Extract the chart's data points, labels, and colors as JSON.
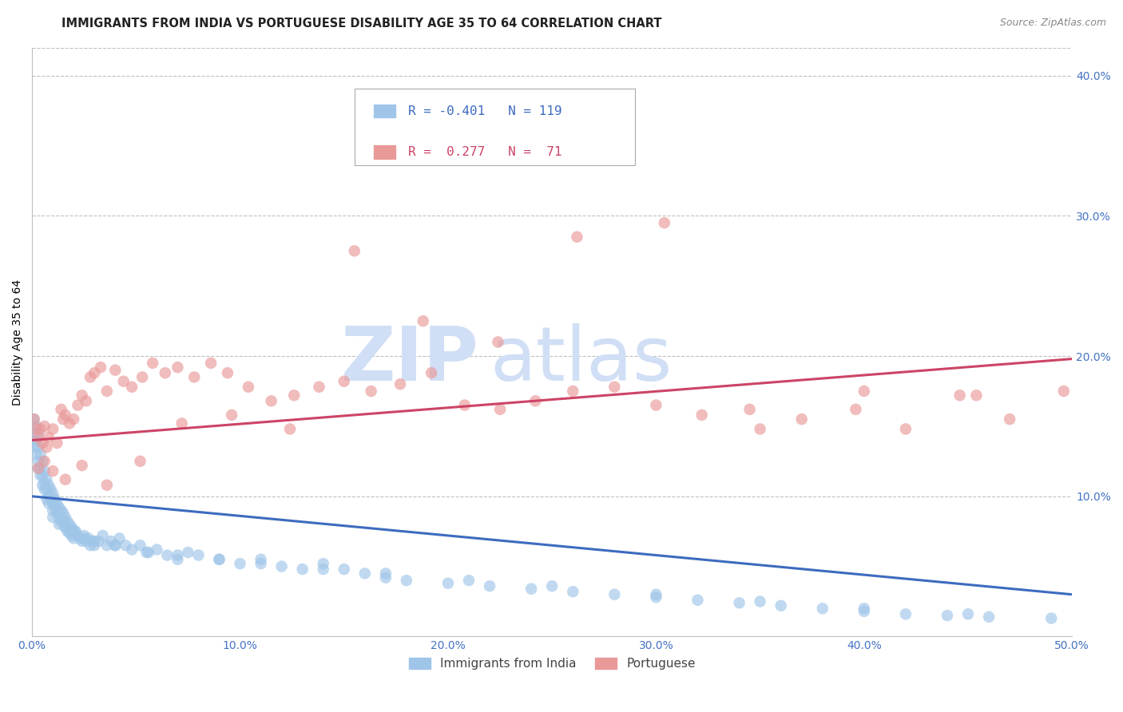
{
  "title": "IMMIGRANTS FROM INDIA VS PORTUGUESE DISABILITY AGE 35 TO 64 CORRELATION CHART",
  "source": "Source: ZipAtlas.com",
  "ylabel": "Disability Age 35 to 64",
  "x_min": 0.0,
  "x_max": 0.5,
  "y_min": 0.0,
  "y_max": 0.42,
  "x_tick_vals": [
    0.0,
    0.1,
    0.2,
    0.3,
    0.4,
    0.5
  ],
  "x_tick_labels": [
    "0.0%",
    "10.0%",
    "20.0%",
    "30.0%",
    "40.0%",
    "50.0%"
  ],
  "y_ticks_right": [
    0.1,
    0.2,
    0.3,
    0.4
  ],
  "y_tick_labels_right": [
    "10.0%",
    "20.0%",
    "30.0%",
    "40.0%"
  ],
  "blue_color": "#9fc5e8",
  "pink_color": "#ea9999",
  "blue_line_color": "#3d6bbf",
  "pink_line_color": "#cc4466",
  "right_axis_color": "#4472c4",
  "x_axis_color": "#4472c4",
  "grid_color": "#c0c0c0",
  "watermark_zip": "ZIP",
  "watermark_atlas": "atlas",
  "watermark_color": "#d0dff5",
  "legend_blue_label": "Immigrants from India",
  "legend_pink_label": "Portuguese",
  "blue_scatter_x": [
    0.001,
    0.001,
    0.001,
    0.002,
    0.002,
    0.002,
    0.003,
    0.003,
    0.003,
    0.003,
    0.004,
    0.004,
    0.004,
    0.005,
    0.005,
    0.005,
    0.006,
    0.006,
    0.006,
    0.007,
    0.007,
    0.007,
    0.008,
    0.008,
    0.008,
    0.009,
    0.009,
    0.01,
    0.01,
    0.01,
    0.011,
    0.011,
    0.012,
    0.012,
    0.013,
    0.013,
    0.014,
    0.014,
    0.015,
    0.015,
    0.016,
    0.016,
    0.017,
    0.017,
    0.018,
    0.018,
    0.019,
    0.019,
    0.02,
    0.02,
    0.021,
    0.022,
    0.023,
    0.024,
    0.025,
    0.026,
    0.027,
    0.028,
    0.029,
    0.03,
    0.032,
    0.034,
    0.036,
    0.038,
    0.04,
    0.042,
    0.045,
    0.048,
    0.052,
    0.056,
    0.06,
    0.065,
    0.07,
    0.075,
    0.08,
    0.09,
    0.1,
    0.11,
    0.12,
    0.13,
    0.14,
    0.15,
    0.16,
    0.17,
    0.18,
    0.2,
    0.22,
    0.24,
    0.26,
    0.28,
    0.3,
    0.32,
    0.34,
    0.36,
    0.38,
    0.4,
    0.42,
    0.44,
    0.46,
    0.01,
    0.013,
    0.016,
    0.02,
    0.025,
    0.03,
    0.04,
    0.055,
    0.07,
    0.09,
    0.11,
    0.14,
    0.17,
    0.21,
    0.25,
    0.3,
    0.35,
    0.4,
    0.45,
    0.49
  ],
  "blue_scatter_y": [
    0.155,
    0.145,
    0.135,
    0.15,
    0.14,
    0.13,
    0.145,
    0.135,
    0.125,
    0.12,
    0.13,
    0.12,
    0.115,
    0.125,
    0.115,
    0.108,
    0.118,
    0.11,
    0.105,
    0.112,
    0.105,
    0.098,
    0.108,
    0.1,
    0.095,
    0.105,
    0.098,
    0.102,
    0.095,
    0.09,
    0.098,
    0.092,
    0.095,
    0.088,
    0.092,
    0.085,
    0.09,
    0.082,
    0.088,
    0.082,
    0.085,
    0.078,
    0.082,
    0.075,
    0.08,
    0.074,
    0.078,
    0.072,
    0.076,
    0.07,
    0.075,
    0.072,
    0.07,
    0.068,
    0.072,
    0.068,
    0.07,
    0.065,
    0.068,
    0.065,
    0.068,
    0.072,
    0.065,
    0.068,
    0.065,
    0.07,
    0.065,
    0.062,
    0.065,
    0.06,
    0.062,
    0.058,
    0.055,
    0.06,
    0.058,
    0.055,
    0.052,
    0.055,
    0.05,
    0.048,
    0.052,
    0.048,
    0.045,
    0.042,
    0.04,
    0.038,
    0.036,
    0.034,
    0.032,
    0.03,
    0.028,
    0.026,
    0.024,
    0.022,
    0.02,
    0.018,
    0.016,
    0.015,
    0.014,
    0.085,
    0.08,
    0.078,
    0.075,
    0.07,
    0.068,
    0.065,
    0.06,
    0.058,
    0.055,
    0.052,
    0.048,
    0.045,
    0.04,
    0.036,
    0.03,
    0.025,
    0.02,
    0.016,
    0.013
  ],
  "pink_scatter_x": [
    0.001,
    0.002,
    0.003,
    0.004,
    0.005,
    0.006,
    0.007,
    0.008,
    0.01,
    0.012,
    0.014,
    0.015,
    0.016,
    0.018,
    0.02,
    0.022,
    0.024,
    0.026,
    0.028,
    0.03,
    0.033,
    0.036,
    0.04,
    0.044,
    0.048,
    0.053,
    0.058,
    0.064,
    0.07,
    0.078,
    0.086,
    0.094,
    0.104,
    0.115,
    0.126,
    0.138,
    0.15,
    0.163,
    0.177,
    0.192,
    0.208,
    0.225,
    0.242,
    0.26,
    0.28,
    0.3,
    0.322,
    0.345,
    0.37,
    0.396,
    0.42,
    0.446,
    0.47,
    0.496,
    0.003,
    0.006,
    0.01,
    0.016,
    0.024,
    0.036,
    0.052,
    0.072,
    0.096,
    0.124,
    0.155,
    0.188,
    0.224,
    0.262,
    0.304,
    0.35,
    0.4,
    0.454
  ],
  "pink_scatter_y": [
    0.155,
    0.148,
    0.142,
    0.148,
    0.138,
    0.15,
    0.135,
    0.142,
    0.148,
    0.138,
    0.162,
    0.155,
    0.158,
    0.152,
    0.155,
    0.165,
    0.172,
    0.168,
    0.185,
    0.188,
    0.192,
    0.175,
    0.19,
    0.182,
    0.178,
    0.185,
    0.195,
    0.188,
    0.192,
    0.185,
    0.195,
    0.188,
    0.178,
    0.168,
    0.172,
    0.178,
    0.182,
    0.175,
    0.18,
    0.188,
    0.165,
    0.162,
    0.168,
    0.175,
    0.178,
    0.165,
    0.158,
    0.162,
    0.155,
    0.162,
    0.148,
    0.172,
    0.155,
    0.175,
    0.12,
    0.125,
    0.118,
    0.112,
    0.122,
    0.108,
    0.125,
    0.152,
    0.158,
    0.148,
    0.275,
    0.225,
    0.21,
    0.285,
    0.295,
    0.148,
    0.175,
    0.172
  ],
  "blue_trend_x": [
    0.0,
    0.5
  ],
  "blue_trend_y": [
    0.1,
    0.03
  ],
  "pink_trend_x": [
    0.0,
    0.5
  ],
  "pink_trend_y": [
    0.14,
    0.198
  ],
  "title_fontsize": 10.5,
  "axis_label_fontsize": 10,
  "tick_fontsize": 10,
  "source_fontsize": 9
}
